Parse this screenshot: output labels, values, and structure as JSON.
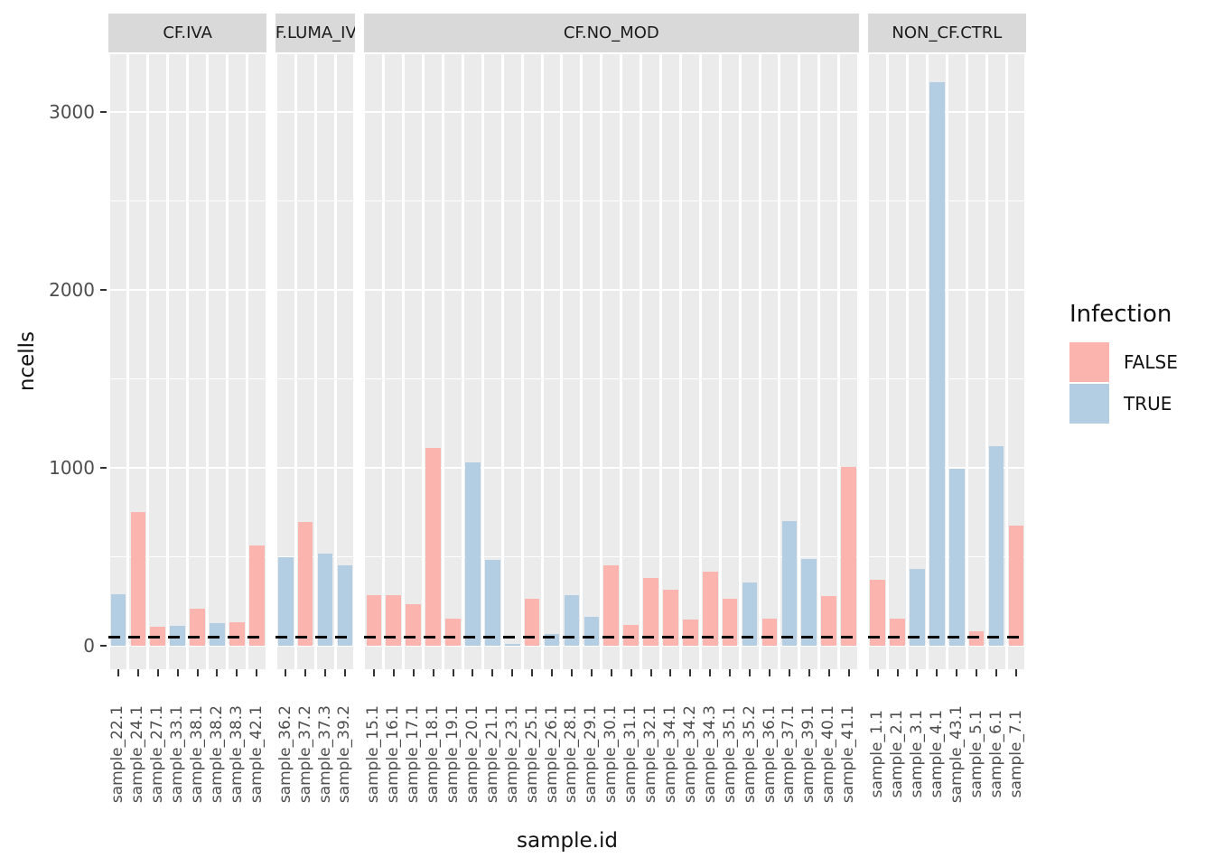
{
  "chart_data": {
    "type": "bar",
    "title": "",
    "xlabel": "sample.id",
    "ylabel": "ncells",
    "ylim": [
      0,
      3325
    ],
    "y_major_ticks": [
      0,
      1000,
      2000,
      3000
    ],
    "y_minor_ticks": [
      500,
      1500,
      2500
    ],
    "grid": "white gridlines on gray panel background, faceted columns",
    "dashed_line_y": 50,
    "legend": {
      "title": "Infection",
      "position": "right",
      "entries": [
        {
          "label": "FALSE",
          "color": "#FBB4AE"
        },
        {
          "label": "TRUE",
          "color": "#B3CDE3"
        }
      ]
    },
    "facets": [
      {
        "label": "CF.IVA",
        "samples": [
          {
            "id": "sample_22.1",
            "infection": "TRUE",
            "ncells": 290
          },
          {
            "id": "sample_24.1",
            "infection": "FALSE",
            "ncells": 750
          },
          {
            "id": "sample_27.1",
            "infection": "FALSE",
            "ncells": 105
          },
          {
            "id": "sample_33.1",
            "infection": "TRUE",
            "ncells": 110
          },
          {
            "id": "sample_38.1",
            "infection": "FALSE",
            "ncells": 210
          },
          {
            "id": "sample_38.2",
            "infection": "TRUE",
            "ncells": 125
          },
          {
            "id": "sample_38.3",
            "infection": "FALSE",
            "ncells": 130
          },
          {
            "id": "sample_42.1",
            "infection": "FALSE",
            "ncells": 565
          }
        ]
      },
      {
        "label": "CF.LUMA_IVA",
        "samples": [
          {
            "id": "sample_36.2",
            "infection": "TRUE",
            "ncells": 500
          },
          {
            "id": "sample_37.2",
            "infection": "FALSE",
            "ncells": 695
          },
          {
            "id": "sample_37.3",
            "infection": "TRUE",
            "ncells": 520
          },
          {
            "id": "sample_39.2",
            "infection": "TRUE",
            "ncells": 450
          }
        ]
      },
      {
        "label": "CF.NO_MOD",
        "samples": [
          {
            "id": "sample_15.1",
            "infection": "FALSE",
            "ncells": 285
          },
          {
            "id": "sample_16.1",
            "infection": "FALSE",
            "ncells": 285
          },
          {
            "id": "sample_17.1",
            "infection": "FALSE",
            "ncells": 235
          },
          {
            "id": "sample_18.1",
            "infection": "FALSE",
            "ncells": 1110
          },
          {
            "id": "sample_19.1",
            "infection": "FALSE",
            "ncells": 150
          },
          {
            "id": "sample_20.1",
            "infection": "TRUE",
            "ncells": 1030
          },
          {
            "id": "sample_21.1",
            "infection": "TRUE",
            "ncells": 480
          },
          {
            "id": "sample_23.1",
            "infection": "TRUE",
            "ncells": 10
          },
          {
            "id": "sample_25.1",
            "infection": "FALSE",
            "ncells": 265
          },
          {
            "id": "sample_26.1",
            "infection": "TRUE",
            "ncells": 65
          },
          {
            "id": "sample_28.1",
            "infection": "TRUE",
            "ncells": 285
          },
          {
            "id": "sample_29.1",
            "infection": "TRUE",
            "ncells": 160
          },
          {
            "id": "sample_30.1",
            "infection": "FALSE",
            "ncells": 450
          },
          {
            "id": "sample_31.1",
            "infection": "FALSE",
            "ncells": 115
          },
          {
            "id": "sample_32.1",
            "infection": "FALSE",
            "ncells": 380
          },
          {
            "id": "sample_34.1",
            "infection": "FALSE",
            "ncells": 315
          },
          {
            "id": "sample_34.2",
            "infection": "FALSE",
            "ncells": 145
          },
          {
            "id": "sample_34.3",
            "infection": "FALSE",
            "ncells": 415
          },
          {
            "id": "sample_35.1",
            "infection": "FALSE",
            "ncells": 265
          },
          {
            "id": "sample_35.2",
            "infection": "TRUE",
            "ncells": 355
          },
          {
            "id": "sample_36.1",
            "infection": "FALSE",
            "ncells": 150
          },
          {
            "id": "sample_37.1",
            "infection": "TRUE",
            "ncells": 700
          },
          {
            "id": "sample_39.1",
            "infection": "TRUE",
            "ncells": 485
          },
          {
            "id": "sample_40.1",
            "infection": "FALSE",
            "ncells": 280
          },
          {
            "id": "sample_41.1",
            "infection": "FALSE",
            "ncells": 1005
          }
        ]
      },
      {
        "label": "NON_CF.CTRL",
        "samples": [
          {
            "id": "sample_1.1",
            "infection": "FALSE",
            "ncells": 370
          },
          {
            "id": "sample_2.1",
            "infection": "FALSE",
            "ncells": 150
          },
          {
            "id": "sample_3.1",
            "infection": "TRUE",
            "ncells": 430
          },
          {
            "id": "sample_4.1",
            "infection": "TRUE",
            "ncells": 3170
          },
          {
            "id": "sample_43.1",
            "infection": "TRUE",
            "ncells": 995
          },
          {
            "id": "sample_5.1",
            "infection": "FALSE",
            "ncells": 80
          },
          {
            "id": "sample_6.1",
            "infection": "TRUE",
            "ncells": 1120
          },
          {
            "id": "sample_7.1",
            "infection": "FALSE",
            "ncells": 675
          }
        ]
      }
    ]
  },
  "colors": {
    "false_fill": "#FBB4AE",
    "true_fill": "#B3CDE3",
    "panel_bg": "#EBEBEB",
    "strip_bg": "#D9D9D9",
    "axis_text": "#4D4D4D",
    "dashed_line": "#000000"
  }
}
